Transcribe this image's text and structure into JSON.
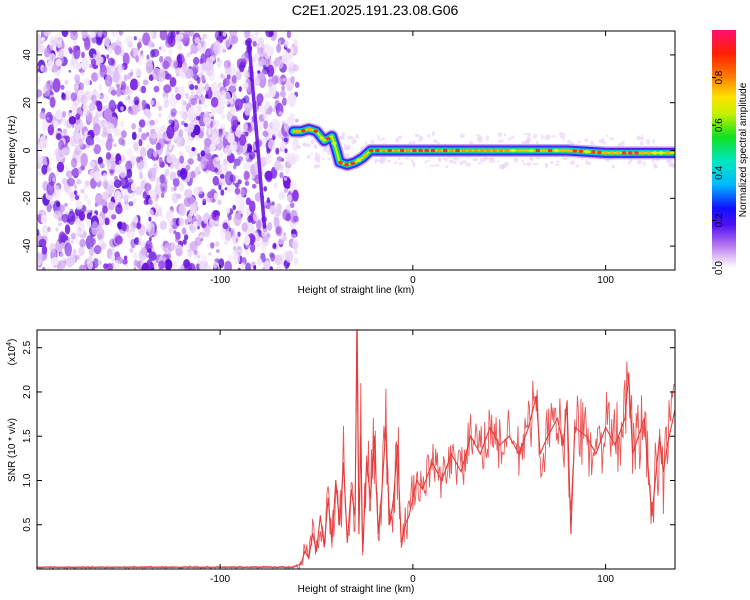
{
  "title": "C2E1.2025.191.23.08.G06",
  "chart_data": [
    {
      "type": "heatmap",
      "xlabel": "Height of straight line (km)",
      "ylabel": "Frequency (Hz)",
      "xlim": [
        -195,
        136
      ],
      "ylim": [
        -50,
        50
      ],
      "xticks": [
        -100,
        0,
        100
      ],
      "yticks": [
        -40,
        -20,
        0,
        20,
        40
      ],
      "colorbar": {
        "label": "Normalized spectral amplitude",
        "range": [
          0,
          1
        ],
        "ticks": [
          "0.0",
          "0.2",
          "0.4",
          "0.6",
          "0.8"
        ]
      },
      "ridge": [
        [
          -62,
          8
        ],
        [
          -58,
          8
        ],
        [
          -54,
          9
        ],
        [
          -50,
          8
        ],
        [
          -46,
          4
        ],
        [
          -42,
          6
        ],
        [
          -40,
          1
        ],
        [
          -38,
          -5
        ],
        [
          -34,
          -6
        ],
        [
          -30,
          -5
        ],
        [
          -26,
          -3
        ],
        [
          -22,
          0
        ],
        [
          -18,
          0
        ],
        [
          0,
          0
        ],
        [
          40,
          0
        ],
        [
          80,
          0
        ],
        [
          100,
          -1
        ],
        [
          136,
          -1
        ]
      ]
    },
    {
      "type": "line",
      "xlabel": "Height of straight line (km)",
      "ylabel": "SNR (10 * v/v)",
      "multiplier": "(x10",
      "multiplier_exp": "4",
      "xlim": [
        -195,
        136
      ],
      "ylim": [
        0,
        2.7
      ],
      "xticks": [
        -100,
        0,
        100
      ],
      "yticks": [
        0.5,
        1.0,
        1.5,
        2.0,
        2.5
      ],
      "ytick_labels": [
        "0.5",
        "1.0",
        "1.5",
        "2.0",
        "2.5"
      ],
      "color": "#e53a3a",
      "series": [
        {
          "x": [
            -195,
            -120,
            -62,
            -58,
            -56,
            -54,
            -52,
            -50,
            -48,
            -46,
            -44,
            -42,
            -40,
            -38,
            -36,
            -34,
            -32,
            -30,
            -29,
            -28,
            -27,
            -26,
            -24,
            -22,
            -20,
            -18,
            -16,
            -14,
            -12,
            -10,
            -8,
            -6,
            -4,
            -2,
            0,
            2,
            5,
            10,
            15,
            20,
            25,
            30,
            35,
            40,
            45,
            50,
            55,
            60,
            64,
            66,
            70,
            75,
            78,
            80,
            82,
            84,
            90,
            95,
            100,
            105,
            110,
            112,
            114,
            120,
            124,
            128,
            130,
            132,
            136
          ],
          "y": [
            0.02,
            0.02,
            0.02,
            0.06,
            0.2,
            0.12,
            0.4,
            0.2,
            0.6,
            0.25,
            0.8,
            0.3,
            1.0,
            0.5,
            1.2,
            0.3,
            0.9,
            0.6,
            2.7,
            0.4,
            1.5,
            0.2,
            1.2,
            0.8,
            1.5,
            0.4,
            0.9,
            1.6,
            0.5,
            0.8,
            1.4,
            0.3,
            0.5,
            0.6,
            0.8,
            1.0,
            0.9,
            1.2,
            1.0,
            1.3,
            1.1,
            1.5,
            1.3,
            1.6,
            1.4,
            1.5,
            1.3,
            1.6,
            1.95,
            1.3,
            1.5,
            1.7,
            1.4,
            1.9,
            0.4,
            1.6,
            1.5,
            1.3,
            1.6,
            1.4,
            1.7,
            2.2,
            1.3,
            1.7,
            0.6,
            1.5,
            1.1,
            1.4,
            1.8
          ]
        }
      ]
    }
  ]
}
